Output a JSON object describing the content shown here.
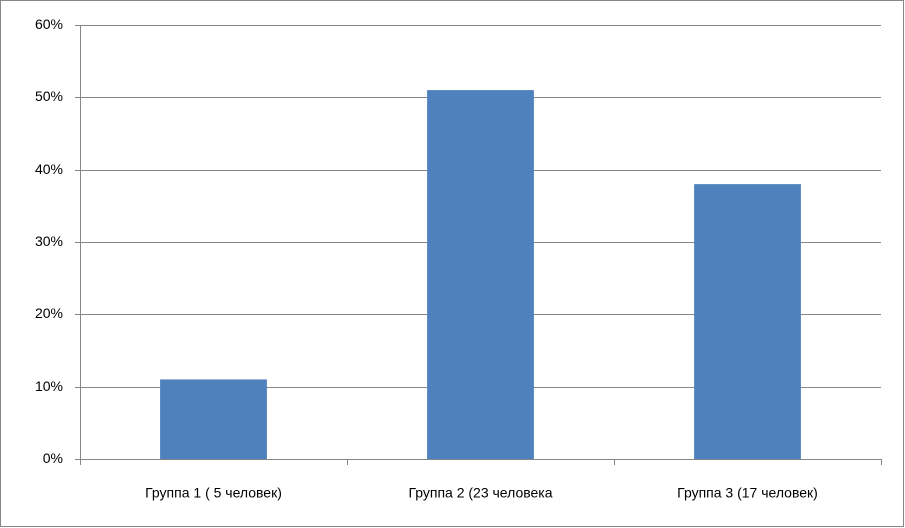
{
  "chart_data": {
    "type": "bar",
    "categories": [
      "Группа 1 ( 5 человек)",
      "Группа 2 (23 человека",
      "Группа 3 (17 человек)"
    ],
    "values": [
      11,
      51,
      38
    ],
    "color": "#4f81bd",
    "ylim": [
      0,
      60
    ],
    "yticks": [
      {
        "value": 0,
        "label": "0%"
      },
      {
        "value": 10,
        "label": "10%"
      },
      {
        "value": 20,
        "label": "20%"
      },
      {
        "value": 30,
        "label": "30%"
      },
      {
        "value": 40,
        "label": "40%"
      },
      {
        "value": 50,
        "label": "50%"
      },
      {
        "value": 60,
        "label": "60%"
      }
    ],
    "grid": true
  }
}
